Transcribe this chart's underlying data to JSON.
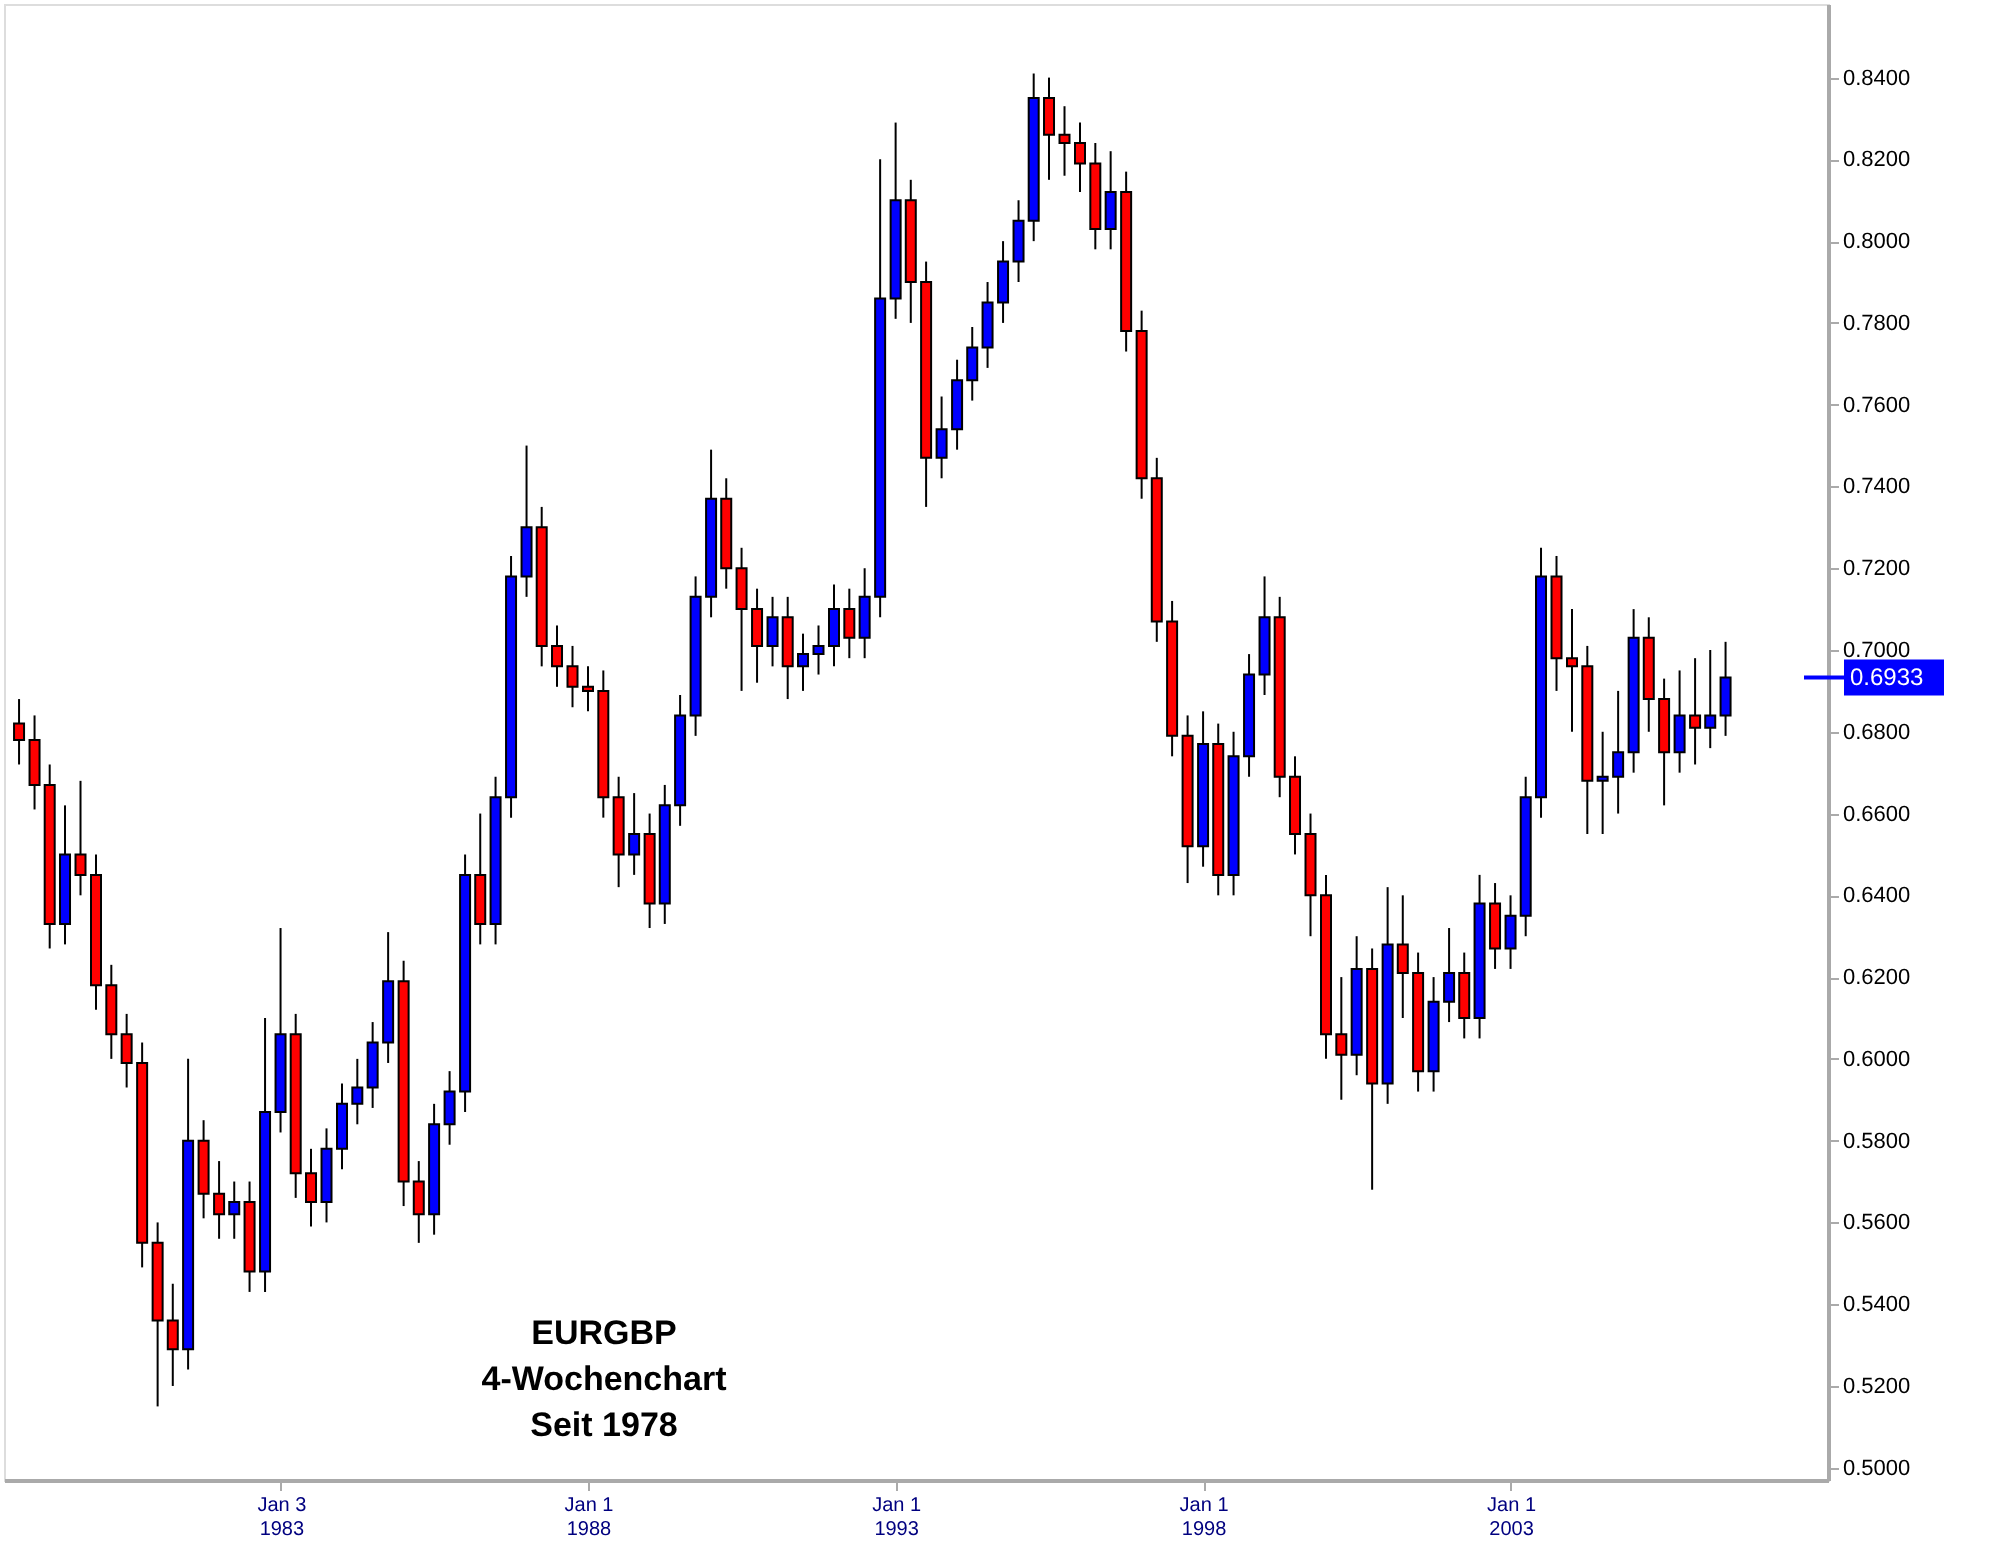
{
  "chart_data": {
    "type": "candlestick",
    "x": [
      "1978-10",
      "1979-01",
      "1979-04",
      "1979-07",
      "1979-10",
      "1980-01",
      "1980-04",
      "1980-07",
      "1980-10",
      "1981-01",
      "1981-04",
      "1981-07",
      "1981-10",
      "1982-01",
      "1982-04",
      "1982-07",
      "1982-10",
      "1983-01",
      "1983-04",
      "1983-07",
      "1983-10",
      "1984-01",
      "1984-04",
      "1984-07",
      "1984-10",
      "1985-01",
      "1985-04",
      "1985-07",
      "1985-10",
      "1986-01",
      "1986-04",
      "1986-07",
      "1986-10",
      "1987-01",
      "1987-04",
      "1987-07",
      "1987-10",
      "1988-01",
      "1988-04",
      "1988-07",
      "1988-10",
      "1989-01",
      "1989-04",
      "1989-07",
      "1989-10",
      "1990-01",
      "1990-04",
      "1990-07",
      "1990-10",
      "1991-01",
      "1991-04",
      "1991-07",
      "1991-10",
      "1992-01",
      "1992-04",
      "1992-07",
      "1992-10",
      "1993-01",
      "1993-04",
      "1993-07",
      "1993-10",
      "1994-01",
      "1994-04",
      "1994-07",
      "1994-10",
      "1995-01",
      "1995-04",
      "1995-07",
      "1995-10",
      "1996-01",
      "1996-04",
      "1996-07",
      "1996-10",
      "1997-01",
      "1997-04",
      "1997-07",
      "1997-10",
      "1998-01",
      "1998-04",
      "1998-07",
      "1998-10",
      "1999-01",
      "1999-04",
      "1999-07",
      "1999-10",
      "2000-01",
      "2000-04",
      "2000-07",
      "2000-10",
      "2001-01",
      "2001-04",
      "2001-07",
      "2001-10",
      "2002-01",
      "2002-04",
      "2002-07",
      "2002-10",
      "2003-01",
      "2003-04",
      "2003-07",
      "2003-10",
      "2004-01",
      "2004-04",
      "2004-07",
      "2004-10",
      "2005-01",
      "2005-04",
      "2005-07",
      "2005-10",
      "2006-01",
      "2006-04",
      "2006-07"
    ],
    "ohlc": [
      [
        0.682,
        0.688,
        0.672,
        0.678
      ],
      [
        0.678,
        0.684,
        0.661,
        0.667
      ],
      [
        0.667,
        0.672,
        0.627,
        0.633
      ],
      [
        0.633,
        0.662,
        0.628,
        0.65
      ],
      [
        0.65,
        0.668,
        0.64,
        0.645
      ],
      [
        0.645,
        0.65,
        0.612,
        0.618
      ],
      [
        0.618,
        0.623,
        0.6,
        0.606
      ],
      [
        0.606,
        0.611,
        0.593,
        0.599
      ],
      [
        0.599,
        0.604,
        0.549,
        0.555
      ],
      [
        0.555,
        0.56,
        0.515,
        0.536
      ],
      [
        0.536,
        0.545,
        0.52,
        0.529
      ],
      [
        0.529,
        0.6,
        0.524,
        0.58
      ],
      [
        0.58,
        0.585,
        0.561,
        0.567
      ],
      [
        0.567,
        0.575,
        0.556,
        0.562
      ],
      [
        0.562,
        0.57,
        0.556,
        0.565
      ],
      [
        0.565,
        0.57,
        0.543,
        0.548
      ],
      [
        0.548,
        0.61,
        0.543,
        0.587
      ],
      [
        0.587,
        0.632,
        0.582,
        0.606
      ],
      [
        0.606,
        0.611,
        0.566,
        0.572
      ],
      [
        0.572,
        0.578,
        0.559,
        0.565
      ],
      [
        0.565,
        0.583,
        0.56,
        0.578
      ],
      [
        0.578,
        0.594,
        0.573,
        0.589
      ],
      [
        0.589,
        0.6,
        0.584,
        0.593
      ],
      [
        0.593,
        0.609,
        0.588,
        0.604
      ],
      [
        0.604,
        0.631,
        0.599,
        0.619
      ],
      [
        0.619,
        0.624,
        0.564,
        0.57
      ],
      [
        0.57,
        0.575,
        0.555,
        0.562
      ],
      [
        0.562,
        0.589,
        0.557,
        0.584
      ],
      [
        0.584,
        0.597,
        0.579,
        0.592
      ],
      [
        0.592,
        0.65,
        0.587,
        0.645
      ],
      [
        0.645,
        0.66,
        0.628,
        0.633
      ],
      [
        0.633,
        0.669,
        0.628,
        0.664
      ],
      [
        0.664,
        0.723,
        0.659,
        0.718
      ],
      [
        0.718,
        0.75,
        0.713,
        0.73
      ],
      [
        0.73,
        0.735,
        0.696,
        0.701
      ],
      [
        0.701,
        0.706,
        0.691,
        0.696
      ],
      [
        0.696,
        0.701,
        0.686,
        0.691
      ],
      [
        0.691,
        0.696,
        0.685,
        0.69
      ],
      [
        0.69,
        0.695,
        0.659,
        0.664
      ],
      [
        0.664,
        0.669,
        0.642,
        0.65
      ],
      [
        0.65,
        0.665,
        0.645,
        0.655
      ],
      [
        0.655,
        0.66,
        0.632,
        0.638
      ],
      [
        0.638,
        0.667,
        0.633,
        0.662
      ],
      [
        0.662,
        0.689,
        0.657,
        0.684
      ],
      [
        0.684,
        0.718,
        0.679,
        0.713
      ],
      [
        0.713,
        0.749,
        0.708,
        0.737
      ],
      [
        0.737,
        0.742,
        0.715,
        0.72
      ],
      [
        0.72,
        0.725,
        0.69,
        0.71
      ],
      [
        0.71,
        0.715,
        0.692,
        0.701
      ],
      [
        0.701,
        0.713,
        0.696,
        0.708
      ],
      [
        0.708,
        0.713,
        0.688,
        0.696
      ],
      [
        0.696,
        0.704,
        0.69,
        0.699
      ],
      [
        0.699,
        0.706,
        0.694,
        0.701
      ],
      [
        0.701,
        0.716,
        0.696,
        0.71
      ],
      [
        0.71,
        0.715,
        0.698,
        0.703
      ],
      [
        0.703,
        0.72,
        0.698,
        0.713
      ],
      [
        0.713,
        0.82,
        0.708,
        0.786
      ],
      [
        0.786,
        0.829,
        0.781,
        0.81
      ],
      [
        0.81,
        0.815,
        0.78,
        0.79
      ],
      [
        0.79,
        0.795,
        0.735,
        0.747
      ],
      [
        0.747,
        0.762,
        0.742,
        0.754
      ],
      [
        0.754,
        0.771,
        0.749,
        0.766
      ],
      [
        0.766,
        0.779,
        0.761,
        0.774
      ],
      [
        0.774,
        0.79,
        0.769,
        0.785
      ],
      [
        0.785,
        0.8,
        0.78,
        0.795
      ],
      [
        0.795,
        0.81,
        0.79,
        0.805
      ],
      [
        0.805,
        0.841,
        0.8,
        0.835
      ],
      [
        0.835,
        0.84,
        0.815,
        0.826
      ],
      [
        0.826,
        0.833,
        0.816,
        0.824
      ],
      [
        0.824,
        0.829,
        0.812,
        0.819
      ],
      [
        0.819,
        0.824,
        0.798,
        0.803
      ],
      [
        0.803,
        0.822,
        0.798,
        0.812
      ],
      [
        0.812,
        0.817,
        0.773,
        0.778
      ],
      [
        0.778,
        0.783,
        0.737,
        0.742
      ],
      [
        0.742,
        0.747,
        0.702,
        0.707
      ],
      [
        0.707,
        0.712,
        0.674,
        0.679
      ],
      [
        0.679,
        0.684,
        0.643,
        0.652
      ],
      [
        0.652,
        0.685,
        0.647,
        0.677
      ],
      [
        0.677,
        0.682,
        0.64,
        0.645
      ],
      [
        0.645,
        0.68,
        0.64,
        0.674
      ],
      [
        0.674,
        0.699,
        0.669,
        0.694
      ],
      [
        0.694,
        0.718,
        0.689,
        0.708
      ],
      [
        0.708,
        0.713,
        0.664,
        0.669
      ],
      [
        0.669,
        0.674,
        0.65,
        0.655
      ],
      [
        0.655,
        0.66,
        0.63,
        0.64
      ],
      [
        0.64,
        0.645,
        0.6,
        0.606
      ],
      [
        0.606,
        0.62,
        0.59,
        0.601
      ],
      [
        0.601,
        0.63,
        0.596,
        0.622
      ],
      [
        0.622,
        0.627,
        0.568,
        0.594
      ],
      [
        0.594,
        0.642,
        0.589,
        0.628
      ],
      [
        0.628,
        0.64,
        0.61,
        0.621
      ],
      [
        0.621,
        0.626,
        0.592,
        0.597
      ],
      [
        0.597,
        0.62,
        0.592,
        0.614
      ],
      [
        0.614,
        0.632,
        0.609,
        0.621
      ],
      [
        0.621,
        0.626,
        0.605,
        0.61
      ],
      [
        0.61,
        0.645,
        0.605,
        0.638
      ],
      [
        0.638,
        0.643,
        0.622,
        0.627
      ],
      [
        0.627,
        0.64,
        0.622,
        0.635
      ],
      [
        0.635,
        0.669,
        0.63,
        0.664
      ],
      [
        0.664,
        0.725,
        0.659,
        0.718
      ],
      [
        0.718,
        0.723,
        0.69,
        0.698
      ],
      [
        0.698,
        0.71,
        0.68,
        0.696
      ],
      [
        0.696,
        0.701,
        0.655,
        0.668
      ],
      [
        0.668,
        0.68,
        0.655,
        0.669
      ],
      [
        0.669,
        0.69,
        0.66,
        0.675
      ],
      [
        0.675,
        0.71,
        0.67,
        0.703
      ],
      [
        0.703,
        0.708,
        0.68,
        0.688
      ],
      [
        0.688,
        0.693,
        0.662,
        0.675
      ],
      [
        0.675,
        0.695,
        0.67,
        0.684
      ],
      [
        0.684,
        0.698,
        0.672,
        0.681
      ],
      [
        0.681,
        0.7,
        0.676,
        0.684
      ],
      [
        0.684,
        0.702,
        0.679,
        0.6933
      ]
    ],
    "colors": [
      "#ff0000",
      "#ff0000",
      "#ff0000",
      "#0000ff",
      "#ff0000",
      "#ff0000",
      "#ff0000",
      "#ff0000",
      "#ff0000",
      "#ff0000",
      "#ff0000",
      "#0000ff",
      "#ff0000",
      "#ff0000",
      "#0000ff",
      "#ff0000",
      "#0000ff",
      "#0000ff",
      "#ff0000",
      "#ff0000",
      "#0000ff",
      "#0000ff",
      "#0000ff",
      "#0000ff",
      "#0000ff",
      "#ff0000",
      "#ff0000",
      "#0000ff",
      "#0000ff",
      "#0000ff",
      "#ff0000",
      "#0000ff",
      "#0000ff",
      "#0000ff",
      "#ff0000",
      "#ff0000",
      "#ff0000",
      "#ff0000",
      "#ff0000",
      "#ff0000",
      "#0000ff",
      "#ff0000",
      "#0000ff",
      "#0000ff",
      "#0000ff",
      "#0000ff",
      "#ff0000",
      "#ff0000",
      "#ff0000",
      "#0000ff",
      "#ff0000",
      "#0000ff",
      "#0000ff",
      "#0000ff",
      "#ff0000",
      "#0000ff",
      "#0000ff",
      "#0000ff",
      "#ff0000",
      "#ff0000",
      "#0000ff",
      "#0000ff",
      "#0000ff",
      "#0000ff",
      "#0000ff",
      "#0000ff",
      "#0000ff",
      "#ff0000",
      "#ff0000",
      "#ff0000",
      "#ff0000",
      "#0000ff",
      "#ff0000",
      "#ff0000",
      "#ff0000",
      "#ff0000",
      "#ff0000",
      "#0000ff",
      "#ff0000",
      "#0000ff",
      "#0000ff",
      "#0000ff",
      "#ff0000",
      "#ff0000",
      "#ff0000",
      "#ff0000",
      "#ff0000",
      "#0000ff",
      "#ff0000",
      "#0000ff",
      "#ff0000",
      "#ff0000",
      "#0000ff",
      "#0000ff",
      "#ff0000",
      "#0000ff",
      "#ff0000",
      "#0000ff",
      "#0000ff",
      "#0000ff",
      "#ff0000",
      "#ff0000",
      "#ff0000",
      "#0000ff",
      "#0000ff",
      "#0000ff",
      "#ff0000",
      "#ff0000",
      "#0000ff",
      "#ff0000",
      "#0000ff",
      "#0000ff"
    ],
    "xlim": [
      "1978-09",
      "2008-01"
    ],
    "xticks": [
      {
        "value": "1983-01-03",
        "label": "Jan 3\n1983"
      },
      {
        "value": "1988-01-01",
        "label": "Jan 1\n1988"
      },
      {
        "value": "1993-01-01",
        "label": "Jan 1\n1993"
      },
      {
        "value": "1998-01-01",
        "label": "Jan 1\n1998"
      },
      {
        "value": "2003-01-01",
        "label": "Jan 1\n2003"
      }
    ],
    "ylim": [
      0.497,
      0.858
    ],
    "yticks": [
      {
        "value": 0.5,
        "label": "0.5000"
      },
      {
        "value": 0.52,
        "label": "0.5200"
      },
      {
        "value": 0.54,
        "label": "0.5400"
      },
      {
        "value": 0.56,
        "label": "0.5600"
      },
      {
        "value": 0.58,
        "label": "0.5800"
      },
      {
        "value": 0.6,
        "label": "0.6000"
      },
      {
        "value": 0.62,
        "label": "0.6200"
      },
      {
        "value": 0.64,
        "label": "0.6400"
      },
      {
        "value": 0.66,
        "label": "0.6600"
      },
      {
        "value": 0.68,
        "label": "0.6800"
      },
      {
        "value": 0.7,
        "label": "0.7000"
      },
      {
        "value": 0.72,
        "label": "0.7200"
      },
      {
        "value": 0.74,
        "label": "0.7400"
      },
      {
        "value": 0.76,
        "label": "0.7600"
      },
      {
        "value": 0.78,
        "label": "0.7800"
      },
      {
        "value": 0.8,
        "label": "0.8000"
      },
      {
        "value": 0.82,
        "label": "0.8200"
      },
      {
        "value": 0.84,
        "label": "0.8400"
      }
    ],
    "ref_lines": [
      {
        "axis": "y",
        "value": 0.6933,
        "label": "0.6933",
        "color": "#0000ff"
      }
    ],
    "annotations": [
      "EURGBP",
      "4-Wochenchart",
      "Seit 1978"
    ],
    "grid": false
  }
}
